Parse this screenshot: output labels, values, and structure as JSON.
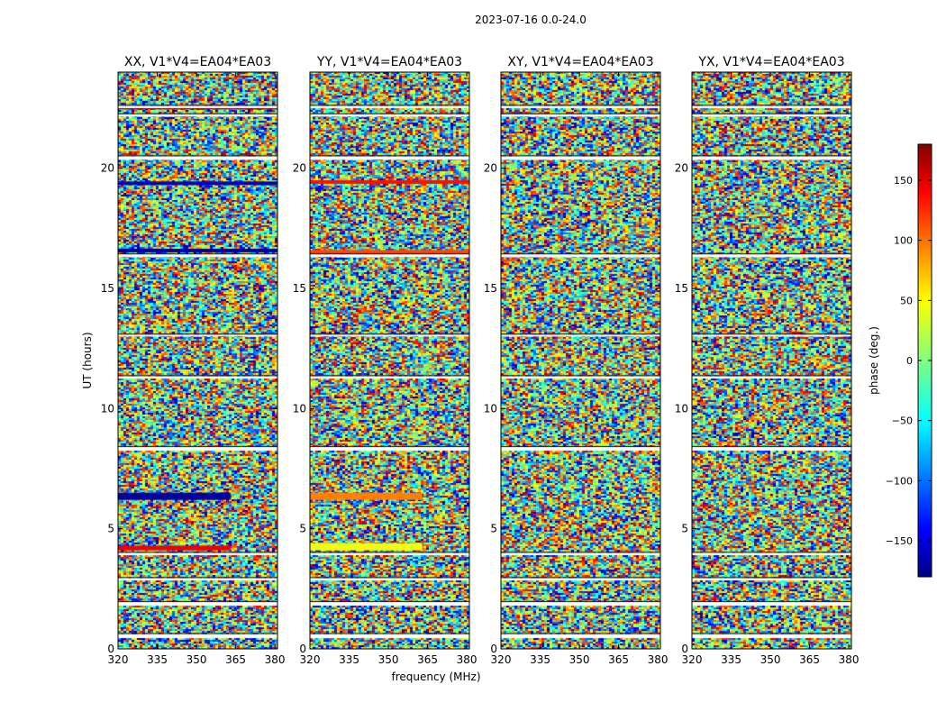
{
  "chart_data": {
    "type": "heatmap",
    "suptitle": "2023-07-16 0.0-24.0",
    "xlabel": "frequency (MHz)",
    "ylabel": "UT (hours)",
    "xlim": [
      320,
      381
    ],
    "ylim": [
      0,
      24
    ],
    "xticks": [
      "320",
      "335",
      "350",
      "365",
      "380"
    ],
    "xtick_values": [
      320,
      335,
      350,
      365,
      380
    ],
    "yticks": [
      "0",
      "5",
      "10",
      "15",
      "20"
    ],
    "ytick_values": [
      0,
      5,
      10,
      15,
      20
    ],
    "panels": [
      {
        "title": "XX, V1*V4=EA04*EA03",
        "polarization": "XX"
      },
      {
        "title": "YY, V1*V4=EA04*EA03",
        "polarization": "YY"
      },
      {
        "title": "XY, V1*V4=EA04*EA03",
        "polarization": "XY"
      },
      {
        "title": "YX, V1*V4=EA04*EA03",
        "polarization": "YX"
      }
    ],
    "gap_bands_ut": [
      [
        0.45,
        0.62
      ],
      [
        1.8,
        1.95
      ],
      [
        2.85,
        2.95
      ],
      [
        3.9,
        4.0
      ],
      [
        8.25,
        8.4
      ],
      [
        11.25,
        11.35
      ],
      [
        13.0,
        13.08
      ],
      [
        16.3,
        16.42
      ],
      [
        20.35,
        20.5
      ],
      [
        22.15,
        22.25
      ],
      [
        22.5,
        22.6
      ]
    ],
    "coherent_bands": {
      "XX": [
        {
          "ut": [
            4.1,
            4.3
          ],
          "phase": 140,
          "freq_max": 363
        },
        {
          "ut": [
            6.2,
            6.5
          ],
          "phase": -170,
          "freq_max": 363
        },
        {
          "ut": [
            16.5,
            16.65
          ],
          "phase": -170,
          "freq_max": 381
        },
        {
          "ut": [
            19.3,
            19.45
          ],
          "phase": -160,
          "freq_max": 381
        },
        {
          "ut": [
            22.45,
            22.55
          ],
          "phase": 175,
          "freq_max": 381
        }
      ],
      "YY": [
        {
          "ut": [
            4.1,
            4.4
          ],
          "phase": 40,
          "freq_max": 363
        },
        {
          "ut": [
            6.2,
            6.5
          ],
          "phase": 90,
          "freq_max": 363
        },
        {
          "ut": [
            16.45,
            16.6
          ],
          "phase": 110,
          "freq_max": 381
        },
        {
          "ut": [
            19.35,
            19.5
          ],
          "phase": 130,
          "freq_max": 381
        }
      ],
      "XY": [],
      "YX": []
    },
    "colorbar": {
      "label": "phase (deg.)",
      "range": [
        -180,
        180
      ],
      "ticks": [
        "150",
        "100",
        "50",
        "0",
        "−50",
        "−100",
        "−150"
      ],
      "tick_values": [
        150,
        100,
        50,
        0,
        -50,
        -100,
        -150
      ],
      "colormap": "jet"
    }
  },
  "colors": {
    "gap": "#ffffff",
    "frame": "#000000",
    "colormap_stops": [
      "#000080",
      "#0000ff",
      "#00ffff",
      "#7fff7f",
      "#ffff00",
      "#ff0000",
      "#800000"
    ]
  }
}
